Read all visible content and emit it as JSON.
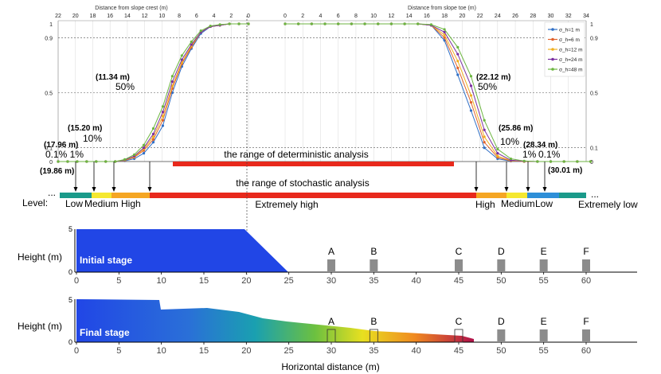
{
  "colors": {
    "s1": "#2f6fc6",
    "s6": "#e0622c",
    "s12": "#f0b020",
    "s24": "#7a2ea0",
    "s48": "#6cb640",
    "red": "#e8291c",
    "blue": "#2146e6"
  },
  "chart_data": [
    {
      "type": "line",
      "xlabel_left": "Distance from slope crest (m)",
      "xlabel_right": "Distance from slope toe (m)",
      "left_ticks": [
        "22",
        "20",
        "18",
        "16",
        "14",
        "12",
        "10",
        "8",
        "6",
        "4",
        "2",
        "0"
      ],
      "right_ticks": [
        "0",
        "2",
        "4",
        "6",
        "8",
        "10",
        "12",
        "14",
        "16",
        "18",
        "20",
        "22",
        "24",
        "26",
        "28",
        "30",
        "32",
        "34"
      ],
      "y_ticks_left": [
        "1",
        "0.9",
        "0.5",
        "0.1",
        "0"
      ],
      "y_ticks_right": [
        "1",
        "0.9",
        "0.5",
        "0.1",
        "0"
      ],
      "legend": [
        "σ_h=1 m",
        "σ_h=6 m",
        "σ_h=12 m",
        "σ_h=24 m",
        "σ_h=48 m"
      ],
      "series": [
        {
          "name": "σ_h=1 m",
          "crest": [
            0,
            0,
            0,
            0,
            0,
            0,
            0,
            0.005,
            0.02,
            0.06,
            0.14,
            0.26,
            0.5,
            0.69,
            0.82,
            0.93,
            0.98,
            0.99,
            1,
            1,
            1
          ],
          "toe": [
            1,
            1,
            1,
            1,
            1,
            1,
            1,
            1,
            1,
            1,
            1,
            0.99,
            0.88,
            0.63,
            0.37,
            0.1,
            0.02,
            0.003,
            0,
            0,
            0,
            0,
            0,
            0
          ]
        },
        {
          "name": "σ_h=6 m",
          "crest": [
            0,
            0,
            0,
            0,
            0,
            0,
            0,
            0.008,
            0.03,
            0.08,
            0.16,
            0.3,
            0.53,
            0.71,
            0.83,
            0.94,
            0.98,
            0.99,
            1,
            1,
            1
          ],
          "toe": [
            1,
            1,
            1,
            1,
            1,
            1,
            1,
            1,
            1,
            1,
            1,
            0.99,
            0.9,
            0.68,
            0.43,
            0.14,
            0.03,
            0.005,
            0,
            0,
            0,
            0,
            0,
            0
          ]
        },
        {
          "name": "σ_h=12 m",
          "crest": [
            0,
            0,
            0,
            0,
            0,
            0,
            0,
            0.01,
            0.035,
            0.09,
            0.18,
            0.33,
            0.55,
            0.72,
            0.84,
            0.94,
            0.98,
            0.99,
            1,
            1,
            1
          ],
          "toe": [
            1,
            1,
            1,
            1,
            1,
            1,
            1,
            1,
            1,
            1,
            1,
            0.99,
            0.92,
            0.73,
            0.48,
            0.18,
            0.04,
            0.007,
            0.001,
            0,
            0,
            0,
            0,
            0
          ]
        },
        {
          "name": "σ_h=24 m",
          "crest": [
            0,
            0,
            0,
            0,
            0,
            0,
            0,
            0.012,
            0.04,
            0.1,
            0.2,
            0.36,
            0.58,
            0.74,
            0.85,
            0.94,
            0.98,
            0.99,
            1,
            1,
            1
          ],
          "toe": [
            1,
            1,
            1,
            1,
            1,
            1,
            1,
            1,
            1,
            1,
            1,
            0.99,
            0.94,
            0.78,
            0.55,
            0.23,
            0.06,
            0.01,
            0.002,
            0,
            0,
            0,
            0,
            0
          ]
        },
        {
          "name": "σ_h=48 m",
          "crest": [
            0,
            0,
            0,
            0,
            0,
            0,
            0,
            0.015,
            0.05,
            0.12,
            0.24,
            0.4,
            0.62,
            0.77,
            0.87,
            0.95,
            0.985,
            0.995,
            1,
            1,
            1
          ],
          "toe": [
            1,
            1,
            1,
            1,
            1,
            1,
            1,
            1,
            1,
            1,
            1,
            0.995,
            0.96,
            0.83,
            0.62,
            0.3,
            0.09,
            0.02,
            0.004,
            0,
            0,
            0,
            0,
            0
          ]
        }
      ],
      "annotations": [
        "(11.34 m)",
        "50%",
        "(15.20 m)",
        "10%",
        "(17.96 m)",
        "0.1% 1%",
        "(19.86 m)",
        "(22.12 m)",
        "50%",
        "(25.86 m)",
        "10%",
        "(28.34 m)",
        "1%",
        "0.1%",
        "(30.01 m)"
      ],
      "range_det": "the range of deterministic analysis",
      "range_sto": "the range of stochastic analysis"
    },
    {
      "type": "area",
      "panel": "Initial stage",
      "ylabel": "Height (m)",
      "x_ticks": [
        "0",
        "5",
        "10",
        "15",
        "20",
        "25",
        "30",
        "35",
        "40",
        "45",
        "50",
        "55",
        "60"
      ],
      "y_ticks": [
        "5",
        "0"
      ],
      "objects": [
        "A",
        "B",
        "C",
        "D",
        "E",
        "F"
      ],
      "object_x": [
        30,
        35,
        45,
        50,
        55,
        60
      ]
    },
    {
      "type": "area",
      "panel": "Final stage",
      "ylabel": "Height (m)",
      "xlabel": "Horizontal distance (m)",
      "x_ticks": [
        "0",
        "5",
        "10",
        "15",
        "20",
        "25",
        "30",
        "35",
        "40",
        "45",
        "50",
        "55",
        "60"
      ],
      "y_ticks": [
        "5",
        "0"
      ],
      "objects": [
        "A",
        "B",
        "C",
        "D",
        "E",
        "F"
      ],
      "object_x": [
        30,
        35,
        45,
        50,
        55,
        60
      ]
    }
  ],
  "level": {
    "title": "Level:",
    "dots_left": "...",
    "dots_right": "...",
    "labels": [
      "Low",
      "Medium",
      "High",
      "Extremely high",
      "High",
      "Medium",
      "Low",
      "Extremely low"
    ]
  }
}
